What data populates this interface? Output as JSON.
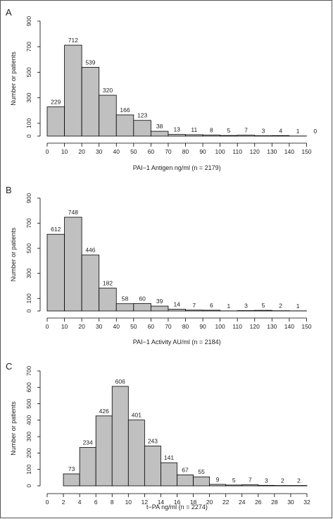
{
  "chart_data": [
    {
      "panel": "A",
      "type": "bar",
      "xlabel": "PAI−1 Antigen ng/ml (n = 2179)",
      "ylabel": "Number or patients",
      "bin_edges": [
        0,
        10,
        20,
        30,
        40,
        50,
        60,
        70,
        80,
        90,
        100,
        110,
        120,
        130,
        140,
        150,
        160
      ],
      "values": [
        229,
        712,
        539,
        320,
        166,
        123,
        38,
        13,
        11,
        8,
        5,
        7,
        3,
        4,
        1,
        0
      ],
      "xticks": [
        0,
        10,
        20,
        30,
        40,
        50,
        60,
        70,
        80,
        90,
        100,
        110,
        120,
        130,
        140,
        150
      ],
      "yticks": [
        0,
        100,
        300,
        500,
        700,
        900
      ],
      "ylim": [
        0,
        900
      ],
      "bar_color": "#c0c0c0"
    },
    {
      "panel": "B",
      "type": "bar",
      "xlabel": "PAI−1 Activity AU/ml (n = 2184)",
      "ylabel": "Number or patients",
      "bin_edges": [
        0,
        10,
        20,
        30,
        40,
        50,
        60,
        70,
        80,
        90,
        100,
        110,
        120,
        130,
        140,
        150
      ],
      "values": [
        612,
        748,
        446,
        182,
        58,
        60,
        39,
        14,
        7,
        6,
        1,
        3,
        5,
        2,
        1
      ],
      "xticks": [
        0,
        10,
        20,
        30,
        40,
        50,
        60,
        70,
        80,
        90,
        100,
        110,
        120,
        130,
        140,
        150
      ],
      "yticks": [
        0,
        100,
        300,
        500,
        700,
        900
      ],
      "ylim": [
        0,
        900
      ],
      "bar_color": "#c0c0c0"
    },
    {
      "panel": "C",
      "type": "bar",
      "xlabel": "t−PA ng/ml (n = 2274)",
      "ylabel": "Number or patients",
      "bin_edges": [
        2,
        4,
        6,
        8,
        10,
        12,
        14,
        16,
        18,
        20,
        22,
        24,
        26,
        28,
        30,
        32
      ],
      "values": [
        73,
        234,
        426,
        606,
        401,
        243,
        141,
        67,
        55,
        9,
        5,
        7,
        3,
        2,
        2
      ],
      "xticks": [
        0,
        2,
        4,
        6,
        8,
        10,
        12,
        14,
        16,
        18,
        20,
        22,
        24,
        26,
        28,
        30,
        32
      ],
      "yticks": [
        0,
        100,
        200,
        300,
        400,
        500,
        600,
        700
      ],
      "ylim": [
        0,
        700
      ],
      "bar_color": "#c0c0c0"
    }
  ]
}
